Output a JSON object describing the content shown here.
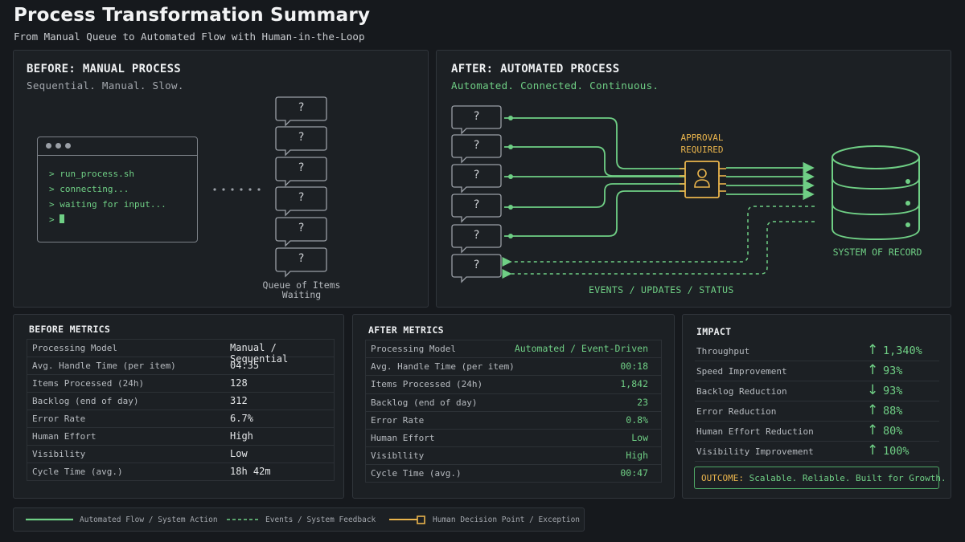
{
  "header": {
    "title": "Process Transformation Summary",
    "subtitle": "From Manual Queue to Automated Flow with Human-in-the-Loop"
  },
  "before": {
    "heading": "BEFORE: MANUAL PROCESS",
    "tagline": "Sequential. Manual. Slow.",
    "terminal_lines": [
      "> run_process.sh",
      "> connecting...",
      "> waiting for input...",
      ">"
    ],
    "queue_marker": "?",
    "queue_label_line1": "Queue of Items",
    "queue_label_line2": "Waiting"
  },
  "after": {
    "heading": "AFTER: AUTOMATED PROCESS",
    "tagline": "Automated. Connected. Continuous.",
    "queue_marker": "?",
    "approval_line1": "APPROVAL",
    "approval_line2": "REQUIRED",
    "system_label": "SYSTEM OF RECORD",
    "events_label": "EVENTS / UPDATES / STATUS"
  },
  "before_metrics": {
    "title": "BEFORE METRICS",
    "rows": [
      {
        "label": "Processing Model",
        "value": "Manual / Sequential"
      },
      {
        "label": "Avg. Handle Time (per item)",
        "value": "04:35"
      },
      {
        "label": "Items Processed (24h)",
        "value": "128"
      },
      {
        "label": "Backlog (end of day)",
        "value": "312"
      },
      {
        "label": "Error Rate",
        "value": "6.7%"
      },
      {
        "label": "Human Effort",
        "value": "High"
      },
      {
        "label": "Visibility",
        "value": "Low"
      },
      {
        "label": "Cycle Time (avg.)",
        "value": "18h 42m"
      }
    ]
  },
  "after_metrics": {
    "title": "AFTER METRICS",
    "rows": [
      {
        "label": "Processing Model",
        "value": "Automated / Event-Driven"
      },
      {
        "label": "Avg. Handle Time (per item)",
        "value": "00:18"
      },
      {
        "label": "Items Processed (24h)",
        "value": "1,842"
      },
      {
        "label": "Backlog (end of day)",
        "value": "23"
      },
      {
        "label": "Error Rate",
        "value": "0.8%"
      },
      {
        "label": "Human Effort",
        "value": "Low"
      },
      {
        "label": "Visibllity",
        "value": "High"
      },
      {
        "label": "Cycle Time (avg.)",
        "value": "00:47"
      }
    ]
  },
  "impact": {
    "title": "IMPACT",
    "rows": [
      {
        "label": "Throughput",
        "arrow": "↑",
        "value": "1,340%"
      },
      {
        "label": "Speed Improvement",
        "arrow": "↑",
        "value": "93%"
      },
      {
        "label": "Backlog Reduction",
        "arrow": "↓",
        "value": "93%"
      },
      {
        "label": "Error Reduction",
        "arrow": "↑",
        "value": "88%"
      },
      {
        "label": "Human Effort Reduction",
        "arrow": "↑",
        "value": "80%"
      },
      {
        "label": "Visibility Improvement",
        "arrow": "↑",
        "value": "100%"
      }
    ],
    "outcome_label": "OUTCOME:",
    "outcome_text": "Scalable. Reliable. Built for Growth."
  },
  "legend": {
    "automated": "Automated Flow / System Action",
    "events": "Events / System Feedback",
    "human": "Human Decision Point / Exception"
  },
  "colors": {
    "accent_green": "#6fcf85",
    "approval_amber": "#e9b44c",
    "background": "#16191d",
    "panel": "#1c2024"
  }
}
